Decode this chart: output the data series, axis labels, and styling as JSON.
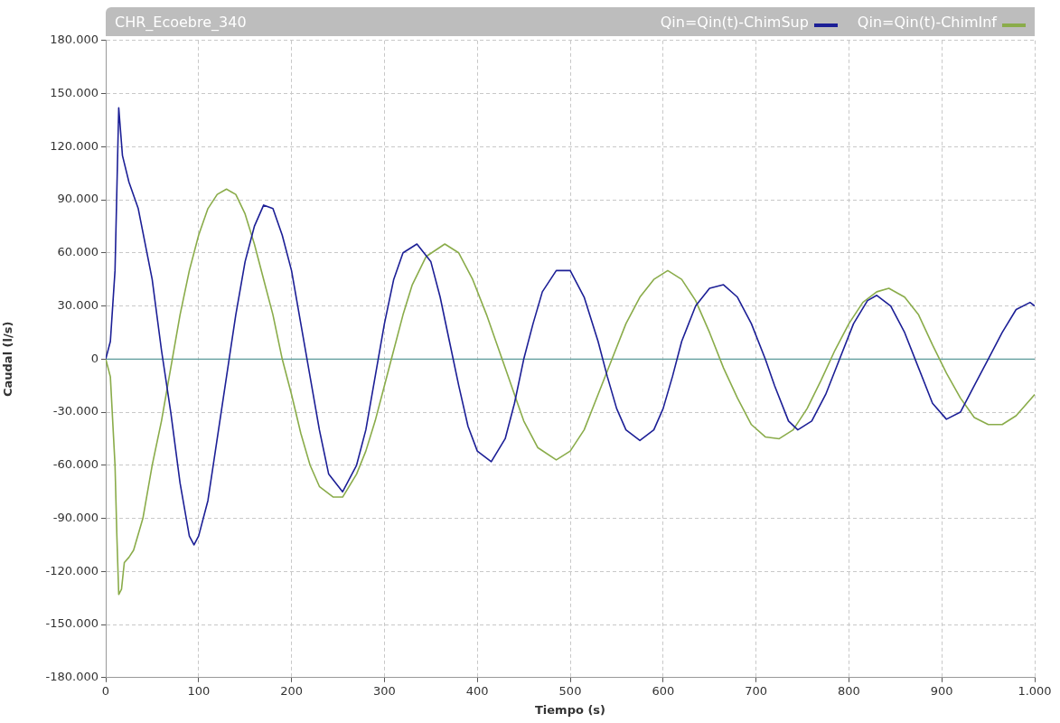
{
  "chart_data": {
    "type": "line",
    "title": "CHR_Ecoebre_340",
    "xlabel": "Tiempo (s)",
    "ylabel": "Caudal (l/s)",
    "xlim": [
      0,
      1000
    ],
    "ylim": [
      -180000,
      180000
    ],
    "xticks": [
      0,
      100,
      200,
      300,
      400,
      500,
      600,
      700,
      800,
      900,
      {
        "value": 1000,
        "label": "1.000"
      }
    ],
    "yticks": [
      {
        "value": -180000,
        "label": "-180.000"
      },
      {
        "value": -150000,
        "label": "-150.000"
      },
      {
        "value": -120000,
        "label": "-120.000"
      },
      {
        "value": -90000,
        "label": "-90.000"
      },
      {
        "value": -60000,
        "label": "-60.000"
      },
      {
        "value": -30000,
        "label": "-30.000"
      },
      0,
      {
        "value": 30000,
        "label": "30.000"
      },
      {
        "value": 60000,
        "label": "60.000"
      },
      {
        "value": 90000,
        "label": "90.000"
      },
      {
        "value": 120000,
        "label": "120.000"
      },
      {
        "value": 150000,
        "label": "150.000"
      },
      {
        "value": 180000,
        "label": "180.000"
      }
    ],
    "grid": true,
    "legend": "top right",
    "marker": "none",
    "line_style": "solid",
    "ref_lines": [
      {
        "axis": "y",
        "value": 0,
        "color": "#5b9a9a"
      }
    ],
    "series": [
      {
        "name": "Qin=Qin(t)-ChimSup",
        "color": "#1c1f96",
        "x": [
          0,
          5,
          10,
          14,
          18,
          25,
          35,
          50,
          60,
          70,
          80,
          90,
          95,
          100,
          110,
          120,
          130,
          140,
          150,
          160,
          170,
          180,
          190,
          200,
          210,
          220,
          230,
          240,
          255,
          270,
          280,
          290,
          300,
          310,
          320,
          335,
          350,
          360,
          370,
          380,
          390,
          400,
          415,
          430,
          440,
          450,
          460,
          470,
          485,
          500,
          515,
          530,
          540,
          550,
          560,
          575,
          590,
          600,
          610,
          620,
          635,
          650,
          665,
          680,
          695,
          710,
          720,
          735,
          745,
          760,
          775,
          790,
          805,
          820,
          830,
          845,
          860,
          875,
          890,
          905,
          920,
          935,
          950,
          965,
          980,
          995,
          1000
        ],
        "values": [
          0,
          10000,
          50000,
          142000,
          115000,
          100000,
          85000,
          45000,
          5000,
          -30000,
          -70000,
          -100000,
          -105000,
          -100000,
          -80000,
          -45000,
          -10000,
          25000,
          55000,
          75000,
          87000,
          85000,
          70000,
          50000,
          20000,
          -10000,
          -40000,
          -65000,
          -75000,
          -60000,
          -40000,
          -10000,
          20000,
          45000,
          60000,
          65000,
          55000,
          35000,
          10000,
          -15000,
          -38000,
          -52000,
          -58000,
          -45000,
          -25000,
          0,
          20000,
          38000,
          50000,
          50000,
          35000,
          10000,
          -10000,
          -28000,
          -40000,
          -46000,
          -40000,
          -28000,
          -10000,
          10000,
          30000,
          40000,
          42000,
          35000,
          20000,
          0,
          -15000,
          -35000,
          -40000,
          -35000,
          -20000,
          0,
          20000,
          33000,
          36000,
          30000,
          15000,
          -5000,
          -25000,
          -34000,
          -30000,
          -15000,
          0,
          15000,
          28000,
          32000,
          30000
        ]
      },
      {
        "name": "Qin=Qin(t)-ChimInf",
        "color": "#8aac4a",
        "x": [
          0,
          5,
          10,
          12,
          14,
          17,
          20,
          25,
          30,
          40,
          50,
          60,
          70,
          80,
          90,
          100,
          110,
          120,
          130,
          140,
          150,
          160,
          170,
          180,
          190,
          200,
          210,
          220,
          230,
          245,
          255,
          270,
          280,
          290,
          300,
          310,
          320,
          330,
          345,
          365,
          380,
          395,
          410,
          420,
          430,
          440,
          450,
          465,
          485,
          500,
          515,
          530,
          545,
          560,
          575,
          590,
          605,
          620,
          635,
          650,
          665,
          680,
          695,
          710,
          725,
          740,
          755,
          770,
          785,
          800,
          815,
          830,
          843,
          860,
          875,
          890,
          905,
          920,
          935,
          950,
          965,
          980,
          1000
        ],
        "values": [
          0,
          -10000,
          -60000,
          -100000,
          -133000,
          -130000,
          -115000,
          -112000,
          -108000,
          -90000,
          -60000,
          -35000,
          -5000,
          25000,
          50000,
          70000,
          85000,
          93000,
          96000,
          93000,
          82000,
          65000,
          45000,
          25000,
          0,
          -20000,
          -42000,
          -60000,
          -72000,
          -78000,
          -78000,
          -65000,
          -52000,
          -35000,
          -15000,
          5000,
          25000,
          42000,
          58000,
          65000,
          60000,
          45000,
          25000,
          10000,
          -5000,
          -20000,
          -35000,
          -50000,
          -57000,
          -52000,
          -40000,
          -20000,
          0,
          20000,
          35000,
          45000,
          50000,
          45000,
          33000,
          15000,
          -5000,
          -22000,
          -37000,
          -44000,
          -45000,
          -40000,
          -28000,
          -12000,
          5000,
          20000,
          32000,
          38000,
          40000,
          35000,
          25000,
          8000,
          -8000,
          -22000,
          -33000,
          -37000,
          -37000,
          -32000,
          -20000
        ]
      }
    ]
  }
}
